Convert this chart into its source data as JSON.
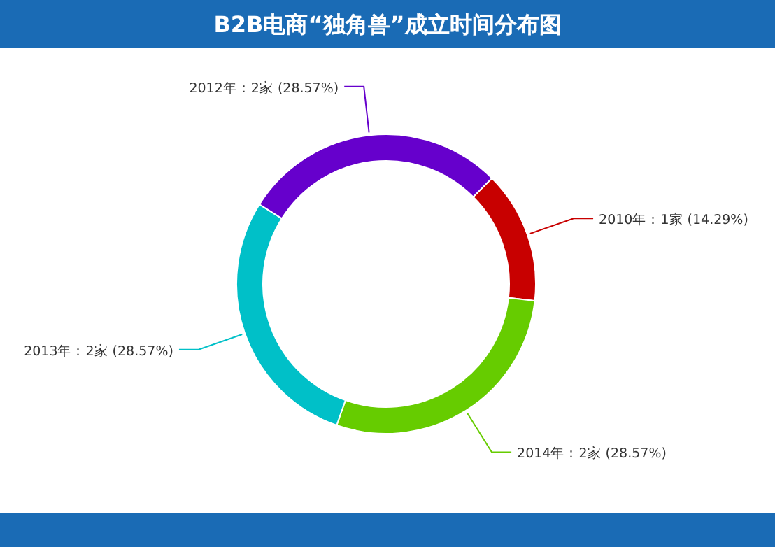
{
  "chart_data": {
    "type": "donut",
    "title": "B2B电商“独角兽”成立时间分布图",
    "categories": [
      "2010年：1家 (14.29%)",
      "2014年：2家 (28.57%)",
      "2013年：2家 (28.57%)",
      "2012年：2家 (28.57%)"
    ],
    "values": [
      1,
      2,
      2,
      2
    ],
    "colors": [
      "#c80000",
      "#66cc00",
      "#00c0c8",
      "#6600cc"
    ]
  }
}
